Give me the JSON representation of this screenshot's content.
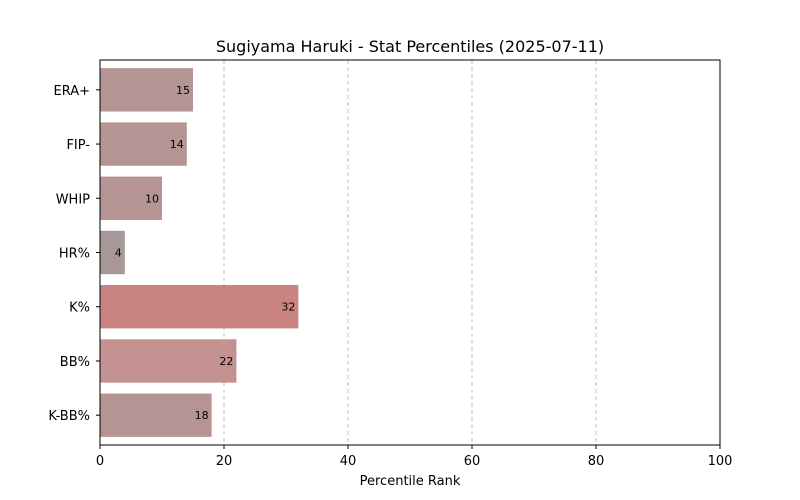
{
  "chart_data": {
    "type": "bar",
    "orientation": "horizontal",
    "title": "Sugiyama Haruki - Stat Percentiles (2025-07-11)",
    "xlabel": "Percentile Rank",
    "ylabel": "",
    "xlim": [
      0,
      100
    ],
    "xticks": [
      "0",
      "20",
      "40",
      "60",
      "80",
      "100"
    ],
    "grid": "x-dashed",
    "categories": [
      "ERA+",
      "FIP-",
      "WHIP",
      "HR%",
      "K%",
      "BB%",
      "K-BB%"
    ],
    "values": [
      15,
      14,
      10,
      4,
      32,
      22,
      18
    ],
    "colors": [
      "#b59593",
      "#b59593",
      "#b59593",
      "#a89799",
      "#c98381",
      "#c49190",
      "#b59593"
    ]
  }
}
